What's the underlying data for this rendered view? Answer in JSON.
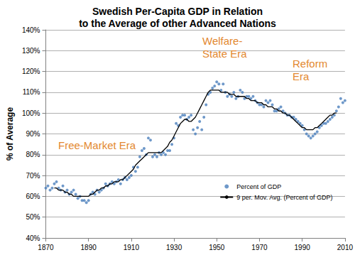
{
  "chart_data": {
    "type": "line",
    "title": "Swedish Per-Capita GDP in Relation\nto the Average of other Advanced Nations",
    "y_label": "% of Average",
    "annotations": [
      "Free-Market Era",
      "Welfare-\nState Era",
      "Reform\nEra"
    ],
    "x": [
      1870,
      1871,
      1872,
      1873,
      1874,
      1875,
      1876,
      1877,
      1878,
      1879,
      1880,
      1881,
      1882,
      1883,
      1884,
      1885,
      1886,
      1887,
      1888,
      1889,
      1890,
      1891,
      1892,
      1893,
      1894,
      1895,
      1896,
      1897,
      1898,
      1899,
      1900,
      1901,
      1902,
      1903,
      1904,
      1905,
      1906,
      1907,
      1908,
      1909,
      1910,
      1911,
      1912,
      1913,
      1914,
      1915,
      1916,
      1917,
      1918,
      1919,
      1920,
      1921,
      1922,
      1923,
      1924,
      1925,
      1926,
      1927,
      1928,
      1929,
      1930,
      1931,
      1932,
      1933,
      1934,
      1935,
      1936,
      1937,
      1938,
      1939,
      1940,
      1941,
      1942,
      1943,
      1944,
      1945,
      1946,
      1947,
      1948,
      1949,
      1950,
      1951,
      1952,
      1953,
      1954,
      1955,
      1956,
      1957,
      1958,
      1959,
      1960,
      1961,
      1962,
      1963,
      1964,
      1965,
      1966,
      1967,
      1968,
      1969,
      1970,
      1971,
      1972,
      1973,
      1974,
      1975,
      1976,
      1977,
      1978,
      1979,
      1980,
      1981,
      1982,
      1983,
      1984,
      1985,
      1986,
      1987,
      1988,
      1989,
      1990,
      1991,
      1992,
      1993,
      1994,
      1995,
      1996,
      1997,
      1998,
      1999,
      2000,
      2001,
      2002,
      2003,
      2004,
      2005,
      2006,
      2007,
      2008,
      2009,
      2010
    ],
    "series": [
      {
        "name": "Percent of GDP",
        "type": "scatter",
        "marker": "circle",
        "color": "#4a7ebb",
        "values": [
          64,
          65,
          63,
          64,
          66,
          67,
          64,
          63,
          65,
          62,
          63,
          61,
          62,
          63,
          61,
          59,
          60,
          58,
          58,
          57,
          58,
          61,
          62,
          61,
          63,
          62,
          63,
          64,
          66,
          65,
          66,
          67,
          66,
          67,
          68,
          66,
          68,
          69,
          68,
          69,
          70,
          74,
          72,
          74,
          79,
          82,
          83,
          80,
          88,
          87,
          79,
          80,
          79,
          81,
          80,
          81,
          80,
          82,
          82,
          85,
          88,
          95,
          94,
          98,
          99,
          99,
          97,
          98,
          99,
          92,
          90,
          93,
          96,
          92,
          98,
          104,
          109,
          110,
          112,
          113,
          115,
          114,
          111,
          114,
          110,
          108,
          109,
          108,
          110,
          107,
          108,
          111,
          110,
          107,
          108,
          108,
          107,
          108,
          106,
          105,
          104,
          104,
          103,
          106,
          105,
          106,
          104,
          101,
          101,
          102,
          103,
          101,
          100,
          99,
          99,
          98,
          98,
          97,
          96,
          95,
          94,
          92,
          90,
          89,
          88,
          89,
          90,
          91,
          93,
          94,
          95,
          95,
          96,
          97,
          98,
          99,
          101,
          103,
          107,
          105,
          106
        ]
      },
      {
        "name": "9 per. Mov. Avg. (Percent of GDP)",
        "type": "line",
        "line_style": "solid",
        "color": "#000000",
        "values": [
          null,
          null,
          null,
          null,
          64,
          64,
          63,
          63,
          63,
          62,
          62,
          61,
          61,
          60,
          60,
          60,
          60,
          60,
          60,
          60,
          60,
          61,
          61,
          62,
          63,
          63,
          64,
          64,
          65,
          65,
          66,
          66,
          67,
          67,
          67,
          68,
          68,
          69,
          70,
          71,
          72,
          73,
          75,
          76,
          77,
          78,
          79,
          80,
          81,
          81,
          81,
          81,
          81,
          81,
          81,
          82,
          83,
          84,
          86,
          87,
          89,
          91,
          93,
          95,
          96,
          97,
          97,
          96,
          96,
          97,
          98,
          100,
          102,
          104,
          106,
          108,
          110,
          111,
          111,
          111,
          111,
          111,
          110,
          110,
          110,
          110,
          109,
          109,
          109,
          108,
          108,
          108,
          108,
          108,
          107,
          107,
          106,
          106,
          106,
          105,
          105,
          105,
          104,
          104,
          103,
          103,
          103,
          102,
          102,
          101,
          101,
          100,
          100,
          99,
          99,
          98,
          97,
          96,
          95,
          94,
          93,
          93,
          92,
          92,
          92,
          92,
          93,
          93,
          94,
          95,
          96,
          97,
          98,
          99,
          99,
          100,
          100,
          null,
          null,
          null,
          null
        ]
      }
    ],
    "xlim": [
      1870,
      2010
    ],
    "xticks": [
      1870,
      1890,
      1910,
      1930,
      1950,
      1970,
      1990,
      2010
    ],
    "ylim": [
      40,
      140
    ],
    "yticks": [
      {
        "value": 40,
        "label": "40%"
      },
      {
        "value": 50,
        "label": "50%"
      },
      {
        "value": 60,
        "label": "60%"
      },
      {
        "value": 70,
        "label": "70%"
      },
      {
        "value": 80,
        "label": "80%"
      },
      {
        "value": 90,
        "label": "90%"
      },
      {
        "value": 100,
        "label": "100%"
      },
      {
        "value": 110,
        "label": "110%"
      },
      {
        "value": 120,
        "label": "120%"
      },
      {
        "value": 130,
        "label": "130%"
      },
      {
        "value": 140,
        "label": "140%"
      }
    ],
    "grid": true,
    "legend": "lower right",
    "annotation_color": "#e3882f"
  }
}
